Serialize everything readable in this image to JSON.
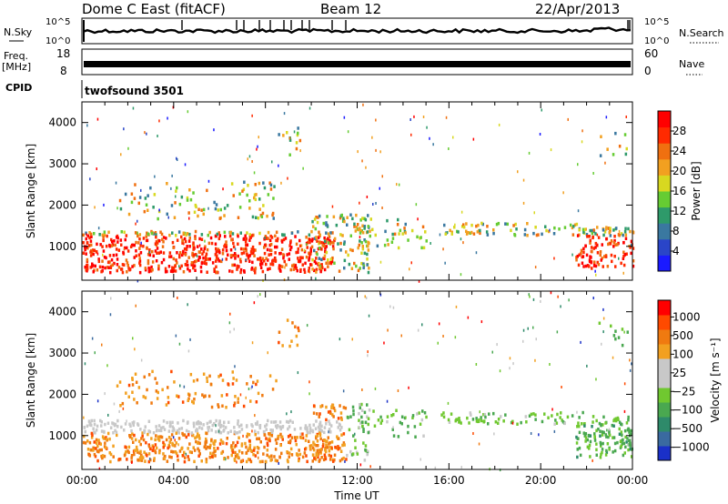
{
  "header": {
    "station": "Dome C East (fitACF)",
    "beam": "Beam 12",
    "date": "22/Apr/2013"
  },
  "noise_panel": {
    "left_label": "N.Sky",
    "right_label": "N.Search",
    "left_ticks": [
      "10^5",
      "10^0"
    ],
    "right_ticks": [
      "10^5",
      "10^0"
    ]
  },
  "freq_panel": {
    "left_label": "Freq.",
    "left_unit": "[MHz]",
    "right_label": "Nave",
    "left_ticks": [
      "18",
      "8"
    ],
    "right_ticks": [
      "60",
      "0"
    ]
  },
  "cpid_panel": {
    "label": "CPID",
    "value": "twofsound 3501"
  },
  "chart_data": [
    {
      "type": "heatmap",
      "name": "power",
      "ylabel": "Slant Range [km]",
      "xlabel": "",
      "yticks": [
        "1000",
        "2000",
        "3000",
        "4000"
      ],
      "ylim": [
        180,
        4500
      ],
      "xlim": [
        0,
        24
      ],
      "colorbar": {
        "label": "Power [dB]",
        "ticks": [
          "4",
          "8",
          "12",
          "16",
          "20",
          "24",
          "28"
        ],
        "colors": [
          "#1a1aff",
          "#2a45c8",
          "#3a78a0",
          "#2e9a6a",
          "#66cc33",
          "#d8d820",
          "#f2a020",
          "#f07010",
          "#ff2a00",
          "#ff0000"
        ]
      }
    },
    {
      "type": "heatmap",
      "name": "velocity",
      "ylabel": "Slant Range [km]",
      "xlabel": "Time UT",
      "xticks": [
        "00:00",
        "04:00",
        "08:00",
        "12:00",
        "16:00",
        "20:00",
        "00:00"
      ],
      "yticks": [
        "1000",
        "2000",
        "3000",
        "4000"
      ],
      "ylim": [
        180,
        4500
      ],
      "xlim": [
        0,
        24
      ],
      "colorbar": {
        "label": "Velocity [m s⁻¹]",
        "ticks": [
          "1000",
          "500",
          "100",
          "25",
          "−25",
          "−100",
          "−500",
          "−1000"
        ],
        "colors": [
          "#1a30c8",
          "#3a6aa0",
          "#2e8a6a",
          "#4aa850",
          "#70c830",
          "#c8c8c8",
          "#c8c8c8",
          "#f2a020",
          "#f07a10",
          "#ff4a00",
          "#ff0000"
        ]
      }
    }
  ],
  "scatter_bands": [
    {
      "t0": 0.0,
      "t1": 11.0,
      "r0": 400,
      "r1": 1400,
      "weight": 1.0
    },
    {
      "t0": 10.0,
      "t1": 12.5,
      "r0": 400,
      "r1": 1800,
      "weight": 0.6
    },
    {
      "t0": 1.5,
      "t1": 8.5,
      "r0": 1700,
      "r1": 2600,
      "weight": 0.25
    },
    {
      "t0": 8.5,
      "t1": 9.5,
      "r0": 3200,
      "r1": 3900,
      "weight": 0.3
    },
    {
      "t0": 12.0,
      "t1": 15.0,
      "r0": 1000,
      "r1": 1700,
      "weight": 0.35
    },
    {
      "t0": 15.5,
      "t1": 22.0,
      "r0": 1300,
      "r1": 1600,
      "weight": 0.6
    },
    {
      "t0": 21.5,
      "t1": 24.0,
      "r0": 500,
      "r1": 1500,
      "weight": 0.9
    },
    {
      "t0": 22.5,
      "t1": 23.8,
      "r0": 3200,
      "r1": 3800,
      "weight": 0.2
    }
  ]
}
